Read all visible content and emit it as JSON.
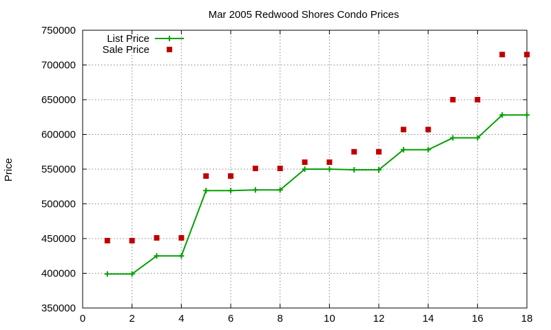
{
  "chart_data": {
    "type": "line",
    "title": "Mar 2005 Redwood Shores Condo Prices",
    "xlabel": "",
    "ylabel": "Price",
    "xlim": [
      0,
      18
    ],
    "ylim": [
      350000,
      750000
    ],
    "xticks": [
      0,
      2,
      4,
      6,
      8,
      10,
      12,
      14,
      16,
      18
    ],
    "yticks": [
      350000,
      400000,
      450000,
      500000,
      550000,
      600000,
      650000,
      700000,
      750000
    ],
    "grid": true,
    "legend": "top-left",
    "series": [
      {
        "name": "List Price",
        "type": "line",
        "color": "#00a000",
        "marker": "plus",
        "x": [
          1,
          2,
          3,
          4,
          5,
          6,
          7,
          8,
          9,
          10,
          11,
          12,
          13,
          14,
          15,
          16,
          17,
          18
        ],
        "y": [
          399000,
          399000,
          425000,
          425000,
          519000,
          519000,
          520000,
          520000,
          550000,
          550000,
          549000,
          549000,
          578000,
          578000,
          595000,
          595000,
          628000,
          628000
        ]
      },
      {
        "name": "Sale Price",
        "type": "scatter",
        "color": "#c00000",
        "marker": "square",
        "x": [
          1,
          2,
          3,
          4,
          5,
          6,
          7,
          8,
          9,
          10,
          11,
          12,
          13,
          14,
          15,
          16,
          17,
          18
        ],
        "y": [
          447000,
          447000,
          451000,
          451000,
          540000,
          540000,
          551000,
          551000,
          560000,
          560000,
          575000,
          575000,
          607000,
          607000,
          650000,
          650000,
          715000,
          715000
        ]
      }
    ]
  }
}
